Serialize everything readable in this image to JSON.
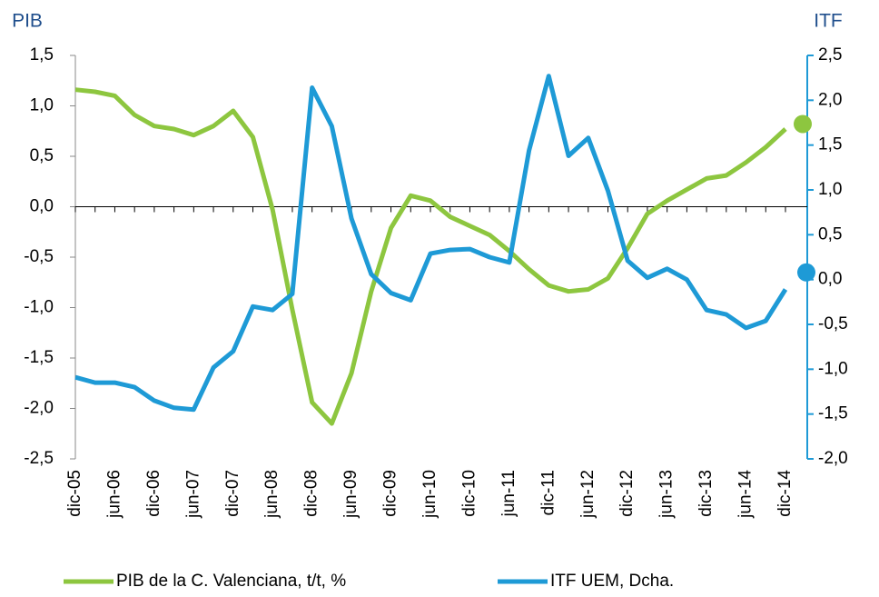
{
  "chart_data": {
    "type": "line",
    "y_label": "PIB",
    "y2_label": "ITF",
    "categories": [
      "dic-05",
      null,
      "jun-06",
      null,
      "dic-06",
      null,
      "jun-07",
      null,
      "dic-07",
      null,
      "jun-08",
      null,
      "dic-08",
      null,
      "jun-09",
      null,
      "dic-09",
      null,
      "jun-10",
      null,
      "dic-10",
      null,
      "jun-11",
      null,
      "dic-11",
      null,
      "jun-12",
      null,
      "dic-12",
      null,
      "jun-13",
      null,
      "dic-13",
      null,
      "jun-14",
      null,
      "dic-14"
    ],
    "series": [
      {
        "name": "PIB de la C. Valenciana, t/t, %",
        "color": "#8dc63f",
        "axis": "y",
        "values": [
          1.16,
          1.14,
          1.1,
          0.91,
          0.8,
          0.77,
          0.71,
          0.8,
          0.95,
          0.69,
          -0.03,
          -1.02,
          -1.94,
          -2.15,
          -1.65,
          -0.84,
          -0.21,
          0.11,
          0.06,
          -0.1,
          -0.19,
          -0.28,
          -0.44,
          -0.62,
          -0.78,
          -0.84,
          -0.82,
          -0.71,
          -0.41,
          -0.07,
          0.06,
          0.17,
          0.28,
          0.31,
          0.44,
          0.59,
          0.77
        ],
        "end_marker": 0.82
      },
      {
        "name": "ITF UEM, Dcha.",
        "color": "#1e9ad6",
        "axis": "y2",
        "values": [
          -1.09,
          -1.15,
          -1.15,
          -1.2,
          -1.35,
          -1.43,
          -1.45,
          -0.98,
          -0.8,
          -0.3,
          -0.34,
          -0.16,
          2.14,
          1.71,
          0.68,
          0.06,
          -0.15,
          -0.23,
          0.29,
          0.33,
          0.34,
          0.25,
          0.19,
          1.44,
          2.27,
          1.38,
          1.58,
          0.99,
          0.21,
          0.02,
          0.12,
          0.0,
          -0.34,
          -0.39,
          -0.54,
          -0.46,
          -0.11
        ],
        "end_marker": 0.08
      }
    ],
    "ylim": [
      -2.5,
      1.5
    ],
    "yticks": [
      {
        "value": -2.5,
        "label": "-2,5"
      },
      {
        "value": -2.0,
        "label": "-2,0"
      },
      {
        "value": -1.5,
        "label": "-1,5"
      },
      {
        "value": -1.0,
        "label": "-1,0"
      },
      {
        "value": -0.5,
        "label": "-0,5"
      },
      {
        "value": 0,
        "label": "0,0"
      },
      {
        "value": 0.5,
        "label": "0,5"
      },
      {
        "value": 1.0,
        "label": "1,0"
      },
      {
        "value": 1.5,
        "label": "1,5"
      }
    ],
    "y2lim": [
      -2.0,
      2.5
    ],
    "y2ticks": [
      {
        "value": -2.0,
        "label": "-2,0"
      },
      {
        "value": -1.5,
        "label": "-1,5"
      },
      {
        "value": -1.0,
        "label": "-1,0"
      },
      {
        "value": -0.5,
        "label": "-0,5"
      },
      {
        "value": 0,
        "label": "0,0"
      },
      {
        "value": 0.5,
        "label": "0,5"
      },
      {
        "value": 1.0,
        "label": "1,0"
      },
      {
        "value": 1.5,
        "label": "1,5"
      },
      {
        "value": 2.0,
        "label": "2,0"
      },
      {
        "value": 2.5,
        "label": "2,5"
      }
    ],
    "grid": false
  }
}
